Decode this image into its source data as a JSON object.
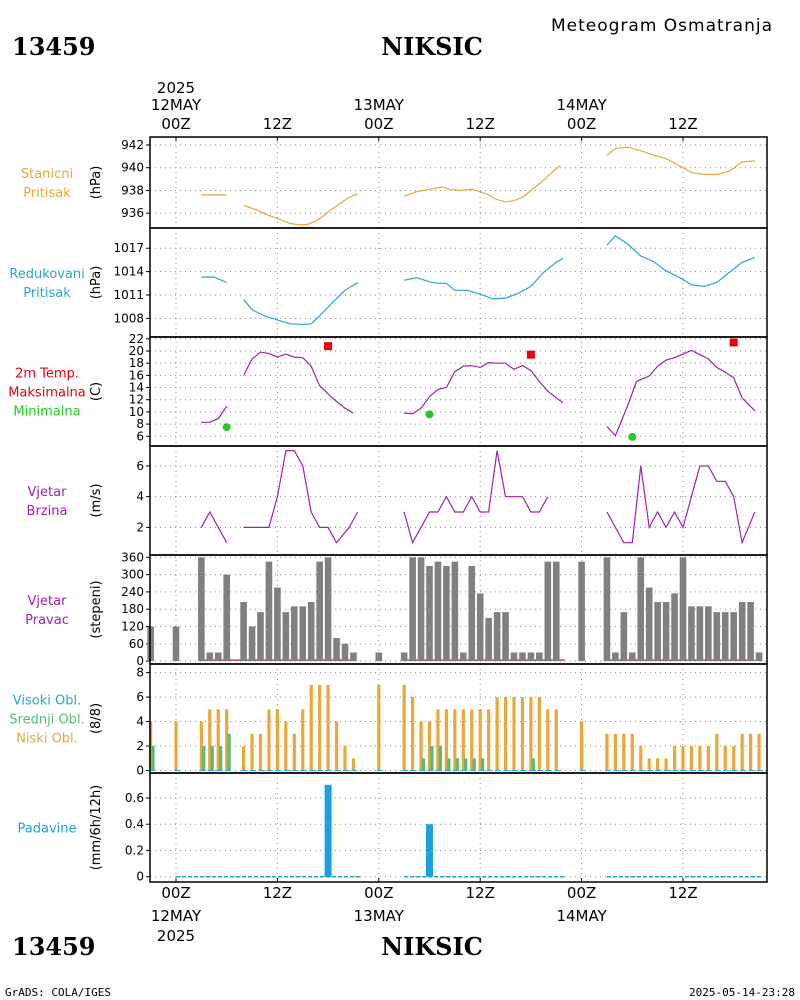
{
  "header": {
    "station_id": "13459",
    "station_name": "NIKSIC",
    "subtitle": "Meteogram Osmatranja",
    "year": "2025"
  },
  "footer": {
    "left": "GrADS: COLA/IGES",
    "right": "2025-05-14-23:28"
  },
  "time_axis": {
    "hours_total": 72,
    "start_offset_hours": -3,
    "end_offset_hours": 70,
    "hour_ticks": [
      {
        "h": 0,
        "label": "00Z"
      },
      {
        "h": 12,
        "label": "12Z"
      },
      {
        "h": 24,
        "label": "00Z"
      },
      {
        "h": 36,
        "label": "12Z"
      },
      {
        "h": 48,
        "label": "00Z"
      },
      {
        "h": 60,
        "label": "12Z"
      }
    ],
    "day_labels": [
      {
        "h": 0,
        "label": "12MAY"
      },
      {
        "h": 24,
        "label": "13MAY"
      },
      {
        "h": 48,
        "label": "14MAY"
      }
    ]
  },
  "colors": {
    "pressure": "#e8a83a",
    "reduced": "#2aa3d6",
    "tmax": "#e8000b",
    "tmin": "#22cc22",
    "wind": "#a020b0",
    "dir_bar": "#808080",
    "dir_line": "#cc4444",
    "cloud_low": "#e8a83a",
    "cloud_mid": "#55bb77",
    "cloud_high": "#2aa3d6",
    "precip": "#1e9fe0",
    "grid": "#888888"
  },
  "chart_data": [
    {
      "panel": "station_pressure",
      "type": "line",
      "labels": [
        "Stanicni",
        "Pritisak"
      ],
      "unit": "(hPa)",
      "yticks": [
        "936",
        "938",
        "940",
        "942"
      ],
      "ylim": [
        934.7,
        942.7
      ],
      "segments": [
        [
          [
            3,
            937.6
          ],
          [
            6,
            937.6
          ]
        ],
        [
          [
            8,
            936.7
          ],
          [
            9.5,
            936.3
          ],
          [
            11,
            935.8
          ],
          [
            12.5,
            935.4
          ],
          [
            13.5,
            935.1
          ],
          [
            14.5,
            935.0
          ],
          [
            15.5,
            935.0
          ],
          [
            16.5,
            935.3
          ],
          [
            17.5,
            935.8
          ],
          [
            18.5,
            936.4
          ],
          [
            19.5,
            936.9
          ],
          [
            20.5,
            937.4
          ],
          [
            21.5,
            937.7
          ]
        ],
        [
          [
            27,
            937.5
          ],
          [
            28.5,
            937.9
          ],
          [
            30,
            938.1
          ],
          [
            31.5,
            938.3
          ],
          [
            32.5,
            938.1
          ],
          [
            33.5,
            938.0
          ],
          [
            35,
            938.1
          ],
          [
            36,
            937.9
          ],
          [
            37,
            937.6
          ],
          [
            38,
            937.2
          ],
          [
            39,
            937.0
          ],
          [
            40,
            937.1
          ],
          [
            41,
            937.4
          ],
          [
            42,
            938.0
          ],
          [
            43.5,
            938.9
          ],
          [
            44.5,
            939.6
          ],
          [
            45.5,
            940.2
          ]
        ],
        [
          [
            51,
            941.1
          ],
          [
            52,
            941.7
          ],
          [
            53.5,
            941.8
          ],
          [
            55,
            941.5
          ],
          [
            56.5,
            941.1
          ],
          [
            58,
            940.8
          ],
          [
            59,
            940.4
          ],
          [
            60,
            940.0
          ],
          [
            61,
            939.6
          ],
          [
            62.5,
            939.4
          ],
          [
            64,
            939.4
          ],
          [
            65.5,
            939.7
          ],
          [
            67,
            940.5
          ],
          [
            68.5,
            940.6
          ]
        ]
      ]
    },
    {
      "panel": "reduced_pressure",
      "type": "line",
      "labels": [
        "Redukovani",
        "Pritisak"
      ],
      "unit": "(hPa)",
      "yticks": [
        "1008",
        "1011",
        "1014",
        "1017"
      ],
      "ylim": [
        1005.6,
        1019.6
      ],
      "segments": [
        [
          [
            3,
            1013.3
          ],
          [
            4.5,
            1013.3
          ],
          [
            6,
            1012.6
          ]
        ],
        [
          [
            8,
            1010.4
          ],
          [
            9,
            1009.1
          ],
          [
            10.5,
            1008.3
          ],
          [
            12,
            1007.8
          ],
          [
            13.5,
            1007.3
          ],
          [
            15,
            1007.2
          ],
          [
            16,
            1007.3
          ],
          [
            17,
            1008.3
          ],
          [
            18.5,
            1010.0
          ],
          [
            20,
            1011.6
          ],
          [
            21.5,
            1012.6
          ]
        ],
        [
          [
            27,
            1012.9
          ],
          [
            28.5,
            1013.2
          ],
          [
            30,
            1012.7
          ],
          [
            31,
            1012.5
          ],
          [
            32,
            1012.5
          ],
          [
            33,
            1011.6
          ],
          [
            34.5,
            1011.6
          ],
          [
            36,
            1011.1
          ],
          [
            37.5,
            1010.5
          ],
          [
            39,
            1010.6
          ],
          [
            40.5,
            1011.2
          ],
          [
            42,
            1012.1
          ],
          [
            43.5,
            1013.9
          ],
          [
            45,
            1015.2
          ],
          [
            45.8,
            1015.7
          ]
        ],
        [
          [
            51,
            1017.4
          ],
          [
            52,
            1018.6
          ],
          [
            53.5,
            1017.5
          ],
          [
            55,
            1016.0
          ],
          [
            56.5,
            1015.3
          ],
          [
            58,
            1014.1
          ],
          [
            59.5,
            1013.3
          ],
          [
            61,
            1012.3
          ],
          [
            62.5,
            1012.1
          ],
          [
            64,
            1012.6
          ],
          [
            65.5,
            1013.9
          ],
          [
            67,
            1015.2
          ],
          [
            68.5,
            1015.8
          ]
        ]
      ]
    },
    {
      "panel": "temperature",
      "type": "line",
      "labels": [
        "2m Temp.",
        "Maksimalna",
        "Minimalna"
      ],
      "unit": "(C)",
      "yticks": [
        "6",
        "8",
        "10",
        "12",
        "14",
        "16",
        "18",
        "20",
        "22"
      ],
      "ylim": [
        4.4,
        22.3
      ],
      "segments": [
        [
          [
            3,
            8.3
          ],
          [
            4,
            8.3
          ],
          [
            5,
            8.9
          ],
          [
            6,
            10.9
          ]
        ],
        [
          [
            8,
            16.0
          ],
          [
            9,
            18.7
          ],
          [
            10,
            19.8
          ],
          [
            11,
            19.6
          ],
          [
            12,
            19.0
          ],
          [
            13,
            19.5
          ],
          [
            14,
            19.0
          ],
          [
            15,
            18.9
          ],
          [
            16,
            17.5
          ],
          [
            17,
            14.3
          ],
          [
            18.5,
            12.3
          ],
          [
            20,
            10.6
          ],
          [
            21,
            9.8
          ]
        ],
        [
          [
            27,
            9.8
          ],
          [
            28,
            9.7
          ],
          [
            29,
            10.6
          ],
          [
            30,
            12.5
          ],
          [
            31,
            13.7
          ],
          [
            32,
            14.0
          ],
          [
            33,
            16.6
          ],
          [
            34,
            17.5
          ],
          [
            35,
            17.6
          ],
          [
            36,
            17.3
          ],
          [
            37,
            18.1
          ],
          [
            38,
            18.0
          ],
          [
            39,
            18.0
          ],
          [
            40,
            17.0
          ],
          [
            41,
            17.6
          ],
          [
            42,
            16.8
          ],
          [
            43,
            15.0
          ],
          [
            44,
            13.4
          ],
          [
            45,
            12.3
          ],
          [
            45.8,
            11.5
          ]
        ],
        [
          [
            51,
            7.6
          ],
          [
            52,
            6.1
          ],
          [
            53.5,
            11.2
          ],
          [
            54.5,
            15.0
          ],
          [
            56,
            15.9
          ],
          [
            57,
            17.5
          ],
          [
            58,
            18.5
          ],
          [
            59,
            18.9
          ],
          [
            60,
            19.5
          ],
          [
            61,
            20.1
          ],
          [
            62,
            19.4
          ],
          [
            63,
            18.7
          ],
          [
            64,
            17.3
          ],
          [
            65,
            16.5
          ],
          [
            66,
            15.6
          ],
          [
            67,
            12.3
          ],
          [
            68.5,
            10.2
          ]
        ]
      ],
      "max_points": [
        [
          18,
          20.8
        ],
        [
          42,
          19.4
        ],
        [
          66,
          21.4
        ]
      ],
      "min_points": [
        [
          6,
          7.5
        ],
        [
          30,
          9.6
        ],
        [
          54,
          5.9
        ]
      ]
    },
    {
      "panel": "wind_speed",
      "type": "line",
      "labels": [
        "Vjetar",
        "Brzina"
      ],
      "unit": "(m/s)",
      "yticks": [
        "2",
        "4",
        "6"
      ],
      "ylim": [
        0.2,
        7.3
      ],
      "segments": [
        [
          [
            3,
            2
          ],
          [
            4,
            3
          ],
          [
            5,
            2
          ],
          [
            6,
            1
          ]
        ],
        [
          [
            8,
            2
          ],
          [
            11,
            2
          ],
          [
            12,
            4
          ],
          [
            13,
            7
          ],
          [
            14,
            7
          ],
          [
            15,
            6
          ],
          [
            16,
            3
          ],
          [
            17,
            2
          ],
          [
            18,
            2
          ],
          [
            19,
            1
          ],
          [
            20.5,
            2
          ],
          [
            21.5,
            3
          ]
        ],
        [
          [
            27,
            3
          ],
          [
            28,
            1
          ],
          [
            29,
            2
          ],
          [
            30,
            3
          ],
          [
            31,
            3
          ],
          [
            32,
            4
          ],
          [
            33,
            3
          ],
          [
            34,
            3
          ],
          [
            35,
            4
          ],
          [
            36,
            3
          ],
          [
            37,
            3
          ],
          [
            38,
            7
          ],
          [
            39,
            4
          ],
          [
            40,
            4
          ],
          [
            41,
            4
          ],
          [
            42,
            3
          ],
          [
            43,
            3
          ],
          [
            44,
            4
          ]
        ],
        [
          [
            51,
            3
          ],
          [
            52,
            2
          ],
          [
            53,
            1
          ],
          [
            54,
            1
          ],
          [
            55,
            6
          ],
          [
            56,
            2
          ],
          [
            57,
            3
          ],
          [
            58,
            2
          ],
          [
            59,
            3
          ],
          [
            60,
            2
          ],
          [
            61,
            4
          ],
          [
            62,
            6
          ],
          [
            63,
            6
          ],
          [
            64,
            5
          ],
          [
            65,
            5
          ],
          [
            66,
            4
          ],
          [
            67,
            1
          ],
          [
            68.5,
            3
          ]
        ]
      ]
    },
    {
      "panel": "wind_direction",
      "type": "bar",
      "labels": [
        "Vjetar",
        "Pravac"
      ],
      "unit": "(stepeni)",
      "yticks": [
        "0",
        "60",
        "120",
        "180",
        "240",
        "300",
        "360"
      ],
      "ylim": [
        -10,
        368
      ],
      "x": [
        -3,
        0,
        3,
        4,
        5,
        6,
        8,
        9,
        10,
        11,
        12,
        13,
        14,
        15,
        16,
        17,
        18,
        19,
        20,
        21,
        24,
        27,
        28,
        29,
        30,
        31,
        32,
        33,
        34,
        35,
        36,
        37,
        38,
        39,
        40,
        41,
        42,
        43,
        44,
        45,
        48,
        51,
        52,
        53,
        54,
        55,
        56,
        57,
        58,
        59,
        60,
        61,
        62,
        63,
        64,
        65,
        66,
        67,
        68,
        69
      ],
      "values": [
        120,
        120,
        360,
        30,
        30,
        300,
        205,
        120,
        170,
        345,
        255,
        170,
        190,
        190,
        205,
        345,
        360,
        80,
        60,
        30,
        30,
        30,
        360,
        360,
        330,
        345,
        330,
        345,
        30,
        330,
        235,
        150,
        170,
        170,
        30,
        30,
        30,
        30,
        345,
        345,
        345,
        360,
        30,
        170,
        30,
        360,
        255,
        205,
        205,
        235,
        360,
        190,
        190,
        190,
        170,
        170,
        170,
        205,
        205,
        30
      ],
      "calm_line_ranges": [
        [
          3,
          21
        ],
        [
          27,
          46
        ],
        [
          51,
          68.5
        ]
      ]
    },
    {
      "panel": "cloud_cover",
      "type": "bar",
      "labels": [
        "Visoki Obl.",
        "Srednji Obl.",
        "Niski Obl."
      ],
      "unit": "(8/8)",
      "yticks": [
        "0",
        "2",
        "4",
        "6",
        "8"
      ],
      "ylim": [
        -0.2,
        8.7
      ],
      "x": [
        -3,
        0,
        3,
        4,
        5,
        6,
        8,
        9,
        10,
        11,
        12,
        13,
        14,
        15,
        16,
        17,
        18,
        19,
        20,
        21,
        24,
        27,
        28,
        29,
        30,
        31,
        32,
        33,
        34,
        35,
        36,
        37,
        38,
        39,
        40,
        41,
        42,
        43,
        44,
        45,
        48,
        51,
        52,
        53,
        54,
        55,
        56,
        57,
        58,
        59,
        60,
        61,
        62,
        63,
        64,
        65,
        66,
        67,
        68,
        69
      ],
      "low": [
        4,
        4,
        4,
        5,
        5,
        5,
        2,
        3,
        3,
        5,
        5,
        4,
        3,
        5,
        7,
        7,
        7,
        4,
        2,
        1,
        7,
        7,
        6,
        4,
        4,
        5,
        5,
        5,
        5,
        5,
        5,
        5,
        6,
        6,
        6,
        6,
        6,
        6,
        5,
        5,
        4,
        3,
        3,
        3,
        3,
        2,
        1,
        1,
        1,
        2,
        2,
        2,
        2,
        2,
        3,
        2,
        2,
        3,
        3,
        3
      ],
      "mid": [
        2,
        0,
        2,
        2,
        2,
        3,
        0,
        0,
        0,
        0,
        0,
        0,
        0,
        0,
        0,
        0,
        0,
        0,
        0,
        0,
        0,
        0,
        0,
        1,
        2,
        2,
        1,
        1,
        1,
        1,
        1,
        0,
        0,
        0,
        0,
        0,
        1,
        0,
        0,
        0,
        0,
        0,
        0,
        0,
        0,
        0,
        0,
        0,
        0,
        0,
        0,
        0,
        0,
        0,
        0,
        0,
        0,
        0,
        0,
        0
      ]
    },
    {
      "panel": "precipitation",
      "type": "bar",
      "labels": [
        "Padavine"
      ],
      "unit": "(mm/6h/12h)",
      "yticks": [
        "0",
        "0.2",
        "0.4",
        "0.6"
      ],
      "ylim": [
        -0.04,
        0.79
      ],
      "x": [
        18,
        30
      ],
      "values": [
        0.7,
        0.4
      ],
      "zero_ranges": [
        [
          0,
          22
        ],
        [
          27,
          46
        ],
        [
          51,
          69.5
        ]
      ]
    }
  ]
}
